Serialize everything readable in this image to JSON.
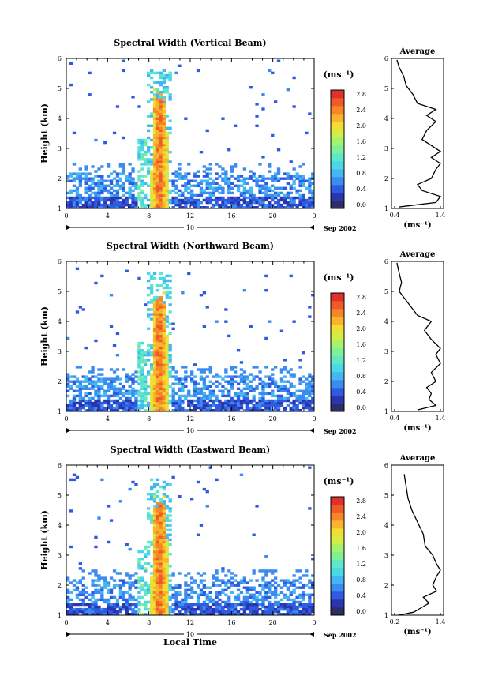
{
  "chart_data": [
    {
      "type": "heatmap",
      "title": "Spectral Width (Vertical Beam)",
      "ylabel": "Height (km)",
      "xlabel": "",
      "xlim": [
        0,
        24
      ],
      "ylim": [
        1,
        6
      ],
      "x_ticks": [
        "0",
        "4",
        "8",
        "12",
        "16",
        "20",
        "0"
      ],
      "y_ticks": [
        "1",
        "2",
        "3",
        "4",
        "5",
        "6"
      ],
      "date_label": "10",
      "date_suffix": "Sep 2002",
      "colorbar": {
        "unit": "(ms⁻¹)",
        "ticks": [
          "0.0",
          "0.4",
          "0.8",
          "1.2",
          "1.6",
          "2.0",
          "2.4",
          "2.8"
        ],
        "range": [
          0.0,
          3.0
        ]
      },
      "profile": {
        "title": "Average",
        "xlabel": "(ms⁻¹)",
        "x_ticks": [
          "0.4",
          "1.4"
        ],
        "xlim": [
          0.4,
          1.4
        ],
        "y_ticks": [
          "1",
          "2",
          "3",
          "4",
          "5",
          "6"
        ],
        "values": [
          [
            0.5,
            1.05
          ],
          [
            1.3,
            1.2
          ],
          [
            1.4,
            1.4
          ],
          [
            1.0,
            1.6
          ],
          [
            0.9,
            1.8
          ],
          [
            1.2,
            2.0
          ],
          [
            1.3,
            2.3
          ],
          [
            1.4,
            2.5
          ],
          [
            1.2,
            2.7
          ],
          [
            1.4,
            2.9
          ],
          [
            1.2,
            3.1
          ],
          [
            1.0,
            3.3
          ],
          [
            1.1,
            3.6
          ],
          [
            1.3,
            3.9
          ],
          [
            1.1,
            4.1
          ],
          [
            1.3,
            4.3
          ],
          [
            0.9,
            4.5
          ],
          [
            0.8,
            4.8
          ],
          [
            0.65,
            5.1
          ],
          [
            0.6,
            5.4
          ],
          [
            0.5,
            5.7
          ],
          [
            0.45,
            5.95
          ]
        ]
      }
    },
    {
      "type": "heatmap",
      "title": "Spectral Width (Northward Beam)",
      "ylabel": "Height (km)",
      "xlabel": "",
      "xlim": [
        0,
        24
      ],
      "ylim": [
        1,
        6
      ],
      "x_ticks": [
        "0",
        "4",
        "8",
        "12",
        "16",
        "20",
        "0"
      ],
      "y_ticks": [
        "1",
        "2",
        "3",
        "4",
        "5",
        "6"
      ],
      "date_label": "10",
      "date_suffix": "Sep 2002",
      "colorbar": {
        "unit": "(ms⁻¹)",
        "ticks": [
          "0.0",
          "0.4",
          "0.8",
          "1.2",
          "1.6",
          "2.0",
          "2.4",
          "2.8"
        ],
        "range": [
          0.0,
          3.0
        ]
      },
      "profile": {
        "title": "Average",
        "xlabel": "(ms⁻¹)",
        "x_ticks": [
          "0.4",
          "1.4"
        ],
        "xlim": [
          0.4,
          1.4
        ],
        "y_ticks": [
          "1",
          "2",
          "3",
          "4",
          "5",
          "6"
        ],
        "values": [
          [
            0.9,
            1.05
          ],
          [
            1.3,
            1.2
          ],
          [
            1.15,
            1.4
          ],
          [
            1.2,
            1.6
          ],
          [
            1.1,
            1.8
          ],
          [
            1.3,
            2.0
          ],
          [
            1.2,
            2.3
          ],
          [
            1.4,
            2.6
          ],
          [
            1.3,
            2.9
          ],
          [
            1.4,
            3.1
          ],
          [
            1.2,
            3.4
          ],
          [
            1.05,
            3.7
          ],
          [
            1.2,
            4.0
          ],
          [
            0.9,
            4.2
          ],
          [
            0.75,
            4.5
          ],
          [
            0.6,
            4.8
          ],
          [
            0.5,
            5.0
          ],
          [
            0.55,
            5.3
          ],
          [
            0.5,
            5.6
          ],
          [
            0.45,
            5.95
          ]
        ]
      }
    },
    {
      "type": "heatmap",
      "title": "Spectral Width (Eastward Beam)",
      "ylabel": "Height (km)",
      "xlabel": "Local Time",
      "xlim": [
        0,
        24
      ],
      "ylim": [
        1,
        6
      ],
      "x_ticks": [
        "0",
        "4",
        "8",
        "12",
        "16",
        "20",
        "0"
      ],
      "y_ticks": [
        "1",
        "2",
        "3",
        "4",
        "5",
        "6"
      ],
      "date_label": "10",
      "date_suffix": "Sep 2002",
      "colorbar": {
        "unit": "(ms⁻¹)",
        "ticks": [
          "0.0",
          "0.4",
          "0.8",
          "1.2",
          "1.6",
          "2.0",
          "2.4",
          "2.8"
        ],
        "range": [
          0.0,
          3.0
        ]
      },
      "profile": {
        "title": "Average",
        "xlabel": "(ms⁻¹)",
        "x_ticks": [
          "0.2",
          "1.4"
        ],
        "xlim": [
          0.2,
          1.4
        ],
        "y_ticks": [
          "1",
          "2",
          "3",
          "4",
          "5",
          "6"
        ],
        "values": [
          [
            0.3,
            1.0
          ],
          [
            0.7,
            1.1
          ],
          [
            0.9,
            1.25
          ],
          [
            1.1,
            1.4
          ],
          [
            0.95,
            1.6
          ],
          [
            1.3,
            1.8
          ],
          [
            1.2,
            2.0
          ],
          [
            1.3,
            2.3
          ],
          [
            1.4,
            2.5
          ],
          [
            1.3,
            2.7
          ],
          [
            1.2,
            3.0
          ],
          [
            1.0,
            3.3
          ],
          [
            0.95,
            3.7
          ],
          [
            0.8,
            4.1
          ],
          [
            0.65,
            4.5
          ],
          [
            0.55,
            4.9
          ],
          [
            0.5,
            5.3
          ],
          [
            0.45,
            5.7
          ]
        ]
      }
    }
  ]
}
